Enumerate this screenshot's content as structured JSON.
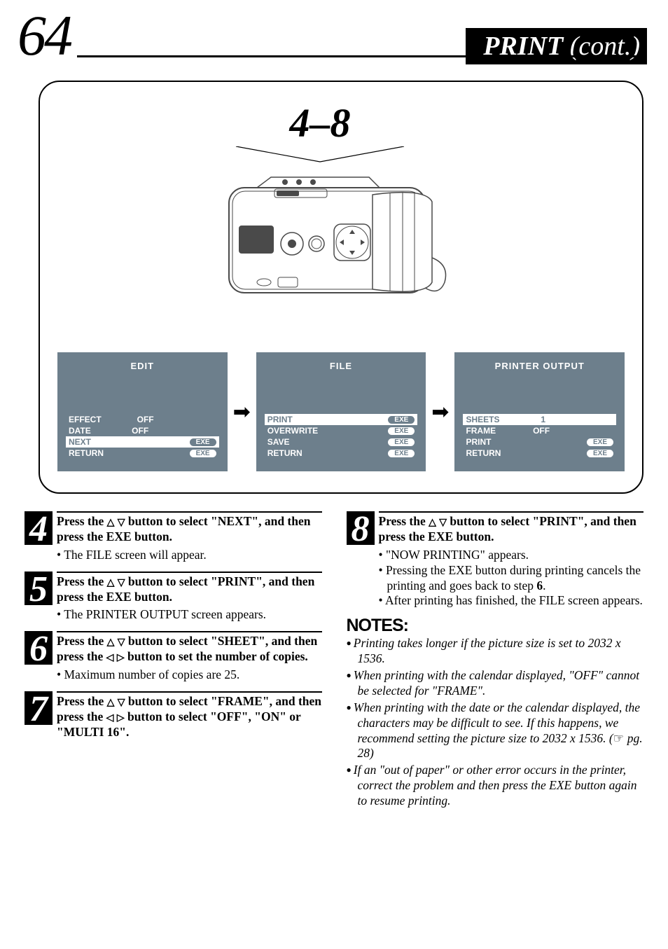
{
  "header": {
    "page_number": "64",
    "title_main": "PRINT",
    "title_cont": "(cont.)"
  },
  "illustration": {
    "step_range": "4–8"
  },
  "screens": {
    "edit": {
      "title": "EDIT",
      "rows": [
        {
          "label": "EFFECT",
          "value": "OFF",
          "type": "text",
          "hl": false
        },
        {
          "label": "DATE",
          "value": "OFF",
          "type": "text",
          "hl": false
        },
        {
          "label": "NEXT",
          "value": "EXE",
          "type": "pill",
          "hl": true
        },
        {
          "label": "RETURN",
          "value": "EXE",
          "type": "pill",
          "hl": false
        }
      ]
    },
    "file": {
      "title": "FILE",
      "rows": [
        {
          "label": "PRINT",
          "value": "EXE",
          "type": "pill",
          "hl": true
        },
        {
          "label": "OVERWRITE",
          "value": "EXE",
          "type": "pill",
          "hl": false
        },
        {
          "label": "SAVE",
          "value": "EXE",
          "type": "pill",
          "hl": false
        },
        {
          "label": "RETURN",
          "value": "EXE",
          "type": "pill",
          "hl": false
        }
      ]
    },
    "printer": {
      "title": "PRINTER OUTPUT",
      "rows": [
        {
          "label": "SHEETS",
          "value": "1",
          "type": "text",
          "hl": true
        },
        {
          "label": "FRAME",
          "value": "OFF",
          "type": "text",
          "hl": false
        },
        {
          "label": "PRINT",
          "value": "EXE",
          "type": "pill",
          "hl": false
        },
        {
          "label": "RETURN",
          "value": "EXE",
          "type": "pill",
          "hl": false
        }
      ]
    }
  },
  "steps": {
    "s4": {
      "num": "4",
      "lead_a": "Press the ",
      "lead_b": " button to select \"NEXT\", and then press the EXE button.",
      "bullets": [
        "The FILE screen will appear."
      ]
    },
    "s5": {
      "num": "5",
      "lead_a": "Press the ",
      "lead_b": " button to select \"PRINT\", and then press the EXE button.",
      "bullets": [
        "The PRINTER OUTPUT screen appears."
      ]
    },
    "s6": {
      "num": "6",
      "lead_a": "Press the ",
      "lead_b": " button to select \"SHEET\", and then press the ",
      "lead_c": " button to set the number of copies.",
      "bullets": [
        "Maximum number of copies are 25."
      ]
    },
    "s7": {
      "num": "7",
      "lead_a": "Press the ",
      "lead_b": " button to select \"FRAME\", and then press the ",
      "lead_c": " button to select \"OFF\", \"ON\" or \"MULTI 16\"."
    },
    "s8": {
      "num": "8",
      "lead_a": "Press the ",
      "lead_b": " button to select \"PRINT\", and then press the EXE button.",
      "bullets": [
        "\"NOW PRINTING\" appears.",
        "Pressing the EXE button during printing cancels the printing and goes back to step 6.",
        "After printing has finished, the FILE screen appears."
      ]
    }
  },
  "notes": {
    "heading": "NOTES:",
    "n1": "Printing takes longer if the picture size is set to 2032 x 1536.",
    "n2": "When printing with the calendar displayed, \"OFF\" cannot be selected for \"FRAME\".",
    "n3_a": "When printing with the date or the calendar displayed, the characters may be difficult to see. If this happens, we recommend setting the picture size to 2032 x 1536. (",
    "n3_b": " pg. 28)",
    "n4": "If an \"out of paper\" or other error occurs in the printer, correct the problem and then press the EXE button again to resume printing."
  },
  "step8_bold_ref": "6"
}
